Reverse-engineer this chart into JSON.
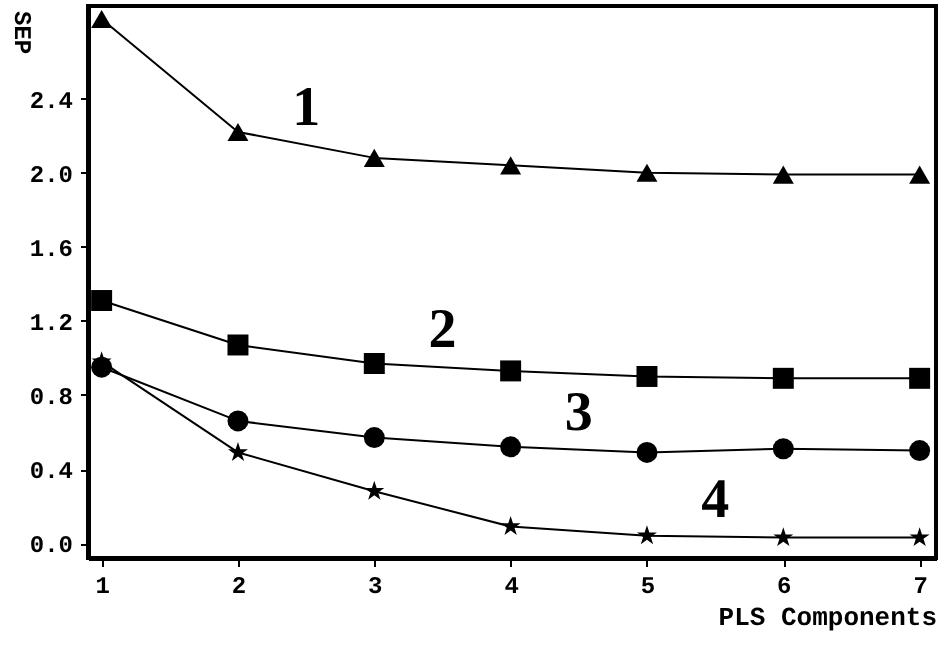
{
  "chart_data": {
    "type": "line",
    "xlabel": "PLS Components",
    "ylabel": "SEP",
    "x": [
      1,
      2,
      3,
      4,
      5,
      6,
      7
    ],
    "series": [
      {
        "name": "1",
        "color": "#000000",
        "marker": "triangle",
        "values": [
          2.83,
          2.22,
          2.08,
          2.04,
          2.0,
          1.99,
          1.99
        ]
      },
      {
        "name": "2",
        "color": "#000000",
        "marker": "square",
        "values": [
          1.31,
          1.07,
          0.97,
          0.93,
          0.9,
          0.89,
          0.89
        ]
      },
      {
        "name": "3",
        "color": "#000000",
        "marker": "circle",
        "values": [
          0.95,
          0.66,
          0.57,
          0.52,
          0.49,
          0.51,
          0.5
        ]
      },
      {
        "name": "4",
        "color": "#000000",
        "marker": "star",
        "values": [
          0.98,
          0.49,
          0.28,
          0.09,
          0.04,
          0.03,
          0.03
        ]
      }
    ],
    "xlim": [
      0.9,
      7.12
    ],
    "ylim": [
      -0.08,
      2.9
    ],
    "xticks": [
      1,
      2,
      3,
      4,
      5,
      6,
      7
    ],
    "yticks": [
      {
        "value": 0,
        "label": "0.0"
      },
      0.4,
      0.8,
      1.2,
      1.6,
      {
        "value": 2,
        "label": "2.0"
      },
      2.4
    ],
    "grid": false
  }
}
